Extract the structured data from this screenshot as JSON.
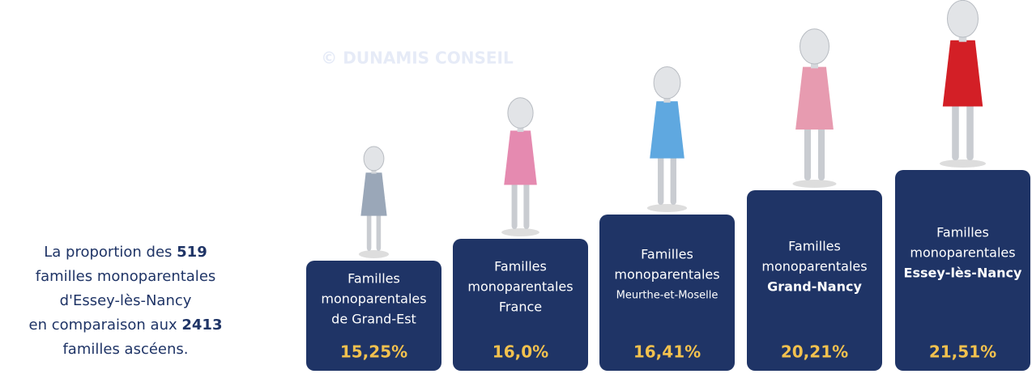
{
  "watermark": "© DUNAMIS CONSEIL",
  "intro": {
    "lines": [
      [
        "La proportion des ",
        "519"
      ],
      [
        "familles monoparentales"
      ],
      [
        "d'Essey-lès-Nancy"
      ],
      [
        "en comparaison aux ",
        "2413"
      ],
      [
        "familles ascéens."
      ]
    ]
  },
  "cards": [
    {
      "label": [
        "Familles",
        "monoparentales",
        "de Grand-Est"
      ],
      "value": "15,25%"
    },
    {
      "label": [
        "Familles",
        "monoparentales",
        "France"
      ],
      "value": "16,0%"
    },
    {
      "label": [
        "Familles",
        "monoparentales",
        "Meurthe-et-Moselle"
      ],
      "value": "16,41%"
    },
    {
      "label": [
        "Familles",
        "monoparentales",
        "Grand-Nancy"
      ],
      "value": "20,21%"
    },
    {
      "label": [
        "Familles",
        "monoparentales",
        "Essey-lès-Nancy"
      ],
      "value": "21,51%"
    }
  ]
}
